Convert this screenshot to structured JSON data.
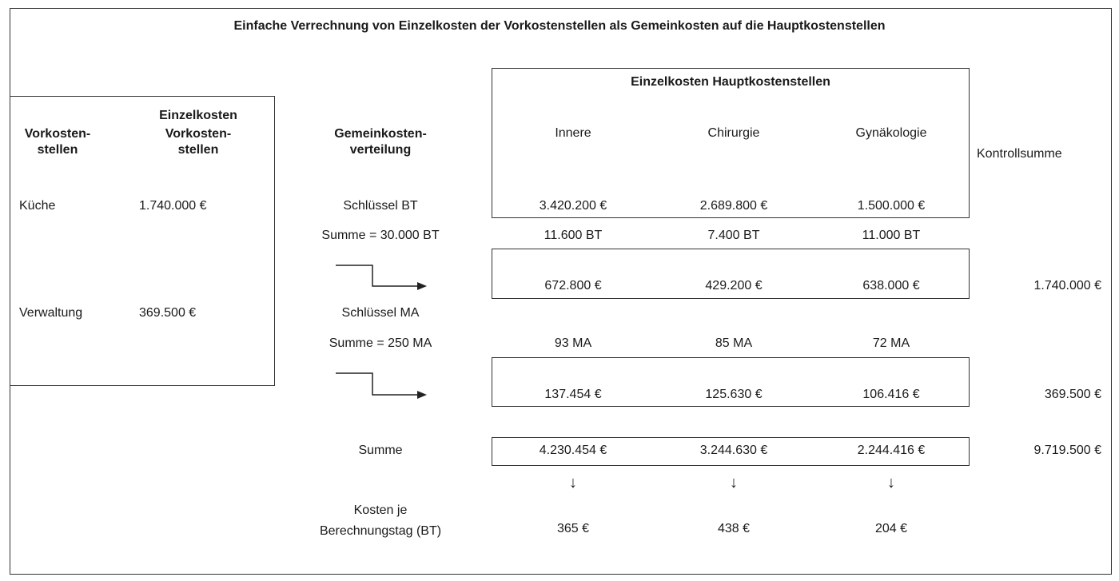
{
  "title": "Einfache Verrechnung von Einzelkosten der Vorkostenstellen als Gemeinkosten auf die Hauptkostenstellen",
  "left": {
    "col1_header": [
      "Vorkosten-",
      "stellen"
    ],
    "col2_header": [
      "Einzelkosten",
      "Vorkosten-",
      "stellen"
    ],
    "rows": [
      {
        "name": "Küche",
        "value": "1.740.000 €"
      },
      {
        "name": "Verwaltung",
        "value": "369.500 €"
      }
    ]
  },
  "middle": {
    "header": [
      "Gemeinkosten-",
      "verteilung"
    ],
    "key_bt": "Schlüssel BT",
    "sum_bt": "Summe = 30.000 BT",
    "key_ma": "Schlüssel MA",
    "sum_ma": "Summe = 250 MA",
    "summe": "Summe",
    "cost_per_day": [
      "Kosten je",
      "Berechnungstag (BT)"
    ]
  },
  "main": {
    "header": "Einzelkosten Hauptkostenstellen",
    "columns": [
      "Innere",
      "Chirurgie",
      "Gynäkologie"
    ],
    "einzelkosten": [
      "3.420.200 €",
      "2.689.800 €",
      "1.500.000 €"
    ],
    "bt": [
      "11.600 BT",
      "7.400 BT",
      "11.000 BT"
    ],
    "kueche_alloc": [
      "672.800 €",
      "429.200 €",
      "638.000 €"
    ],
    "ma": [
      "93 MA",
      "85 MA",
      "72 MA"
    ],
    "verwaltung_alloc": [
      "137.454 €",
      "125.630 €",
      "106.416 €"
    ],
    "summe": [
      "4.230.454 €",
      "3.244.630 €",
      "2.244.416 €"
    ],
    "cost_per_day": [
      "365 €",
      "438 €",
      "204 €"
    ],
    "down_arrow": "↓"
  },
  "control": {
    "header": "Kontrollsumme",
    "kueche": "1.740.000 €",
    "verwaltung": "369.500 €",
    "total": "9.719.500 €"
  }
}
